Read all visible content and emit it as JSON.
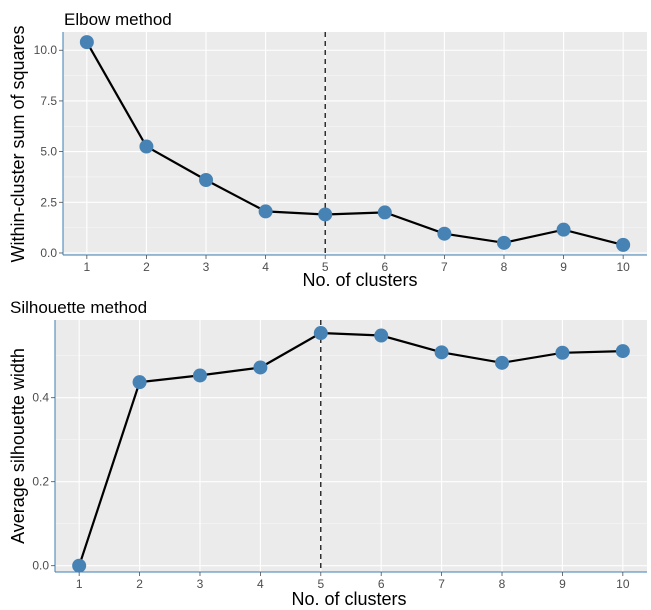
{
  "chart_data": [
    {
      "type": "line",
      "title": "Elbow method",
      "xlabel": "No. of clusters",
      "ylabel": "Within-cluster sum of squares",
      "x": [
        1,
        2,
        3,
        4,
        5,
        6,
        7,
        8,
        9,
        10
      ],
      "y": [
        10.4,
        5.25,
        3.6,
        2.05,
        1.9,
        2.0,
        0.95,
        0.5,
        1.15,
        0.4
      ],
      "xlim": [
        0.6,
        10.4
      ],
      "ylim": [
        -0.1,
        10.9
      ],
      "xticks": [
        1,
        2,
        3,
        4,
        5,
        6,
        7,
        8,
        9,
        10
      ],
      "yticks": [
        0.0,
        2.5,
        5.0,
        7.5,
        10.0
      ],
      "ytick_labels": [
        "0.0",
        "2.5",
        "5.0",
        "7.5",
        "10.0"
      ],
      "optimal_k": 5,
      "grid": true,
      "point_color": "#4682b4",
      "line_color": "#000000"
    },
    {
      "type": "line",
      "title": "Silhouette method",
      "xlabel": "No. of clusters",
      "ylabel": "Average silhouette width",
      "x": [
        1,
        2,
        3,
        4,
        5,
        6,
        7,
        8,
        9,
        10
      ],
      "y": [
        0.0,
        0.437,
        0.453,
        0.472,
        0.554,
        0.548,
        0.508,
        0.483,
        0.507,
        0.511
      ],
      "xlim": [
        0.6,
        10.4
      ],
      "ylim": [
        -0.015,
        0.585
      ],
      "xticks": [
        1,
        2,
        3,
        4,
        5,
        6,
        7,
        8,
        9,
        10
      ],
      "yticks": [
        0.0,
        0.2,
        0.4
      ],
      "ytick_labels": [
        "0.0",
        "0.2",
        "0.4"
      ],
      "optimal_k": 5,
      "grid": true,
      "point_color": "#4682b4",
      "line_color": "#000000"
    }
  ]
}
